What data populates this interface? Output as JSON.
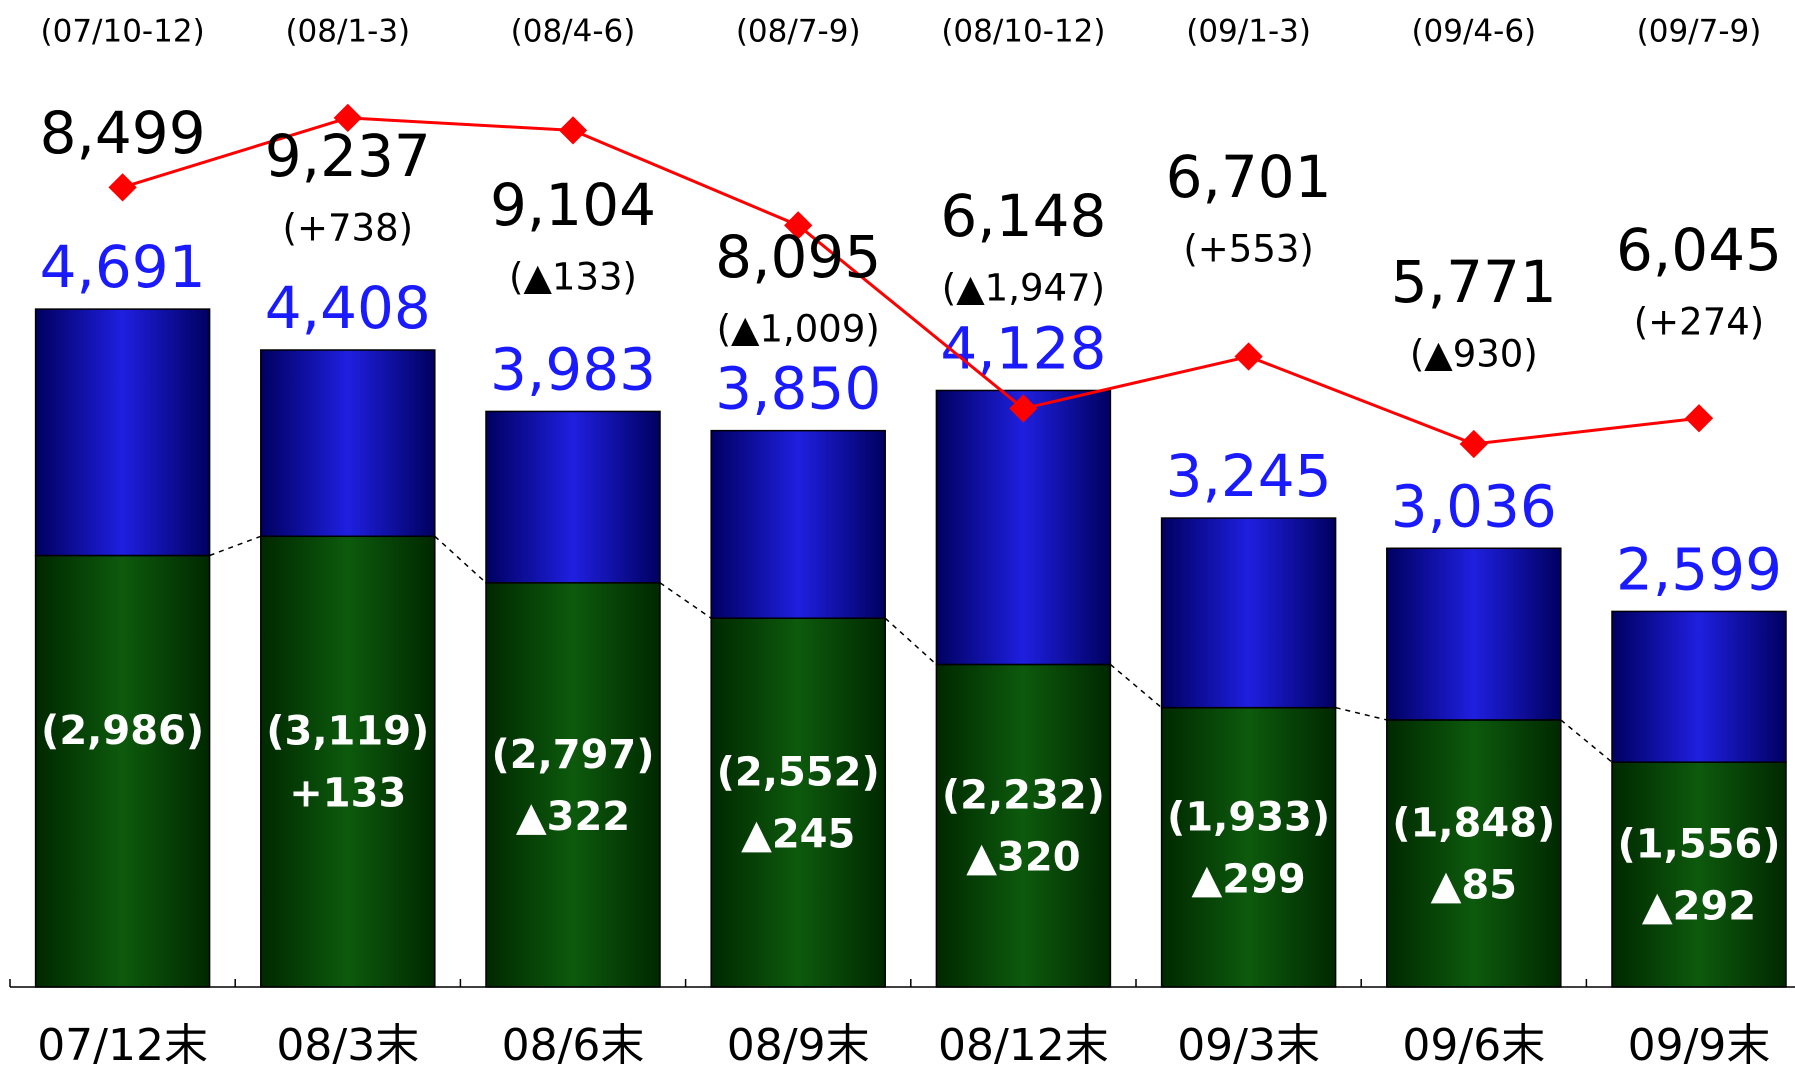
{
  "chart_data": {
    "type": "bar",
    "categories": [
      "07/12末",
      "08/3末",
      "08/6末",
      "08/9末",
      "08/12末",
      "09/3末",
      "09/6末",
      "09/9末"
    ],
    "periods": [
      "(07/10-12)",
      "(08/1-3)",
      "(08/4-6)",
      "(08/7-9)",
      "(08/10-12)",
      "(09/1-3)",
      "(09/4-6)",
      "(09/7-9)"
    ],
    "series": [
      {
        "color": "#0b4a0b",
        "values": [
          2986,
          3119,
          2797,
          2552,
          2232,
          1933,
          1848,
          1556
        ],
        "value_labels": [
          "(2,986)",
          "(3,119)",
          "(2,797)",
          "(2,552)",
          "(2,232)",
          "(1,933)",
          "(1,848)",
          "(1,556)"
        ],
        "changes": [
          null,
          "+133",
          "▲322",
          "▲245",
          "▲320",
          "▲299",
          "▲85",
          "▲292"
        ]
      },
      {
        "color": "#1a1ad0",
        "values": [
          1705,
          1289,
          1186,
          1298,
          1896,
          1312,
          1188,
          1043
        ]
      }
    ],
    "totals": [
      4691,
      4408,
      3983,
      3850,
      4128,
      3245,
      3036,
      2599
    ],
    "total_labels": [
      "4,691",
      "4,408",
      "3,983",
      "3,850",
      "4,128",
      "3,245",
      "3,036",
      "2,599"
    ],
    "line": {
      "color": "#ff0000",
      "axis": "y2",
      "values": [
        8499,
        9237,
        9104,
        8095,
        6148,
        6701,
        5771,
        6045
      ],
      "value_labels": [
        "8,499",
        "9,237",
        "9,104",
        "8,095",
        "6,148",
        "6,701",
        "5,771",
        "6,045"
      ],
      "changes": [
        null,
        "(+738)",
        "(▲133)",
        "(▲1,009)",
        "(▲1,947)",
        "(+553)",
        "(▲930)",
        "(+274)"
      ]
    },
    "ylim": [
      0,
      6830
    ],
    "y2lim": [
      0,
      10490
    ]
  }
}
